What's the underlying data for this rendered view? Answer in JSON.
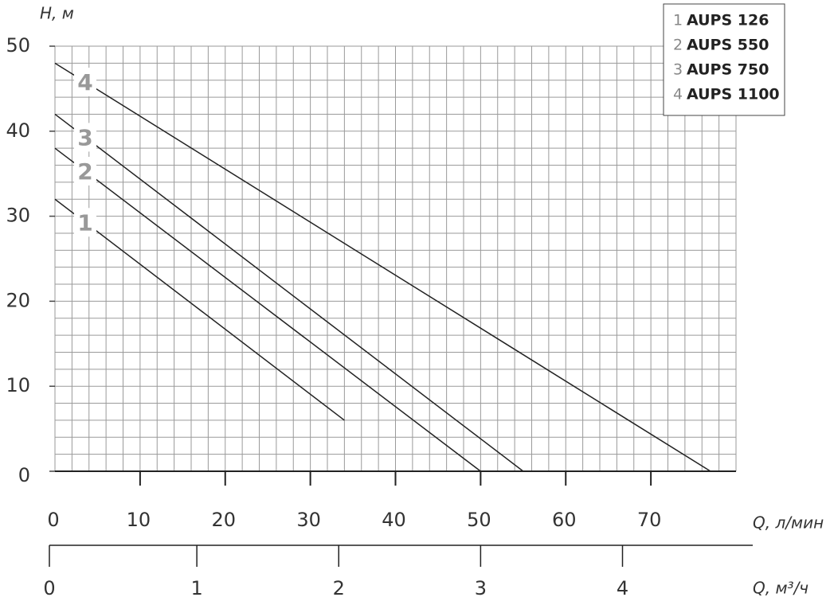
{
  "chart_data": {
    "type": "line",
    "x_label": "Q, л/мин",
    "y_label": "H, м",
    "x2_label": "Q, м³/ч",
    "xlim": [
      0,
      80
    ],
    "xticks": [
      0,
      10,
      20,
      30,
      40,
      50,
      60,
      70
    ],
    "ylim": [
      0,
      50
    ],
    "yticks": [
      0,
      10,
      20,
      30,
      40,
      50
    ],
    "x2lim": [
      0,
      4.8
    ],
    "x2ticks": [
      0,
      1,
      2,
      3,
      4
    ],
    "grid": true,
    "legend": "top-right",
    "series": [
      {
        "number": "1",
        "name": "AUPS 126",
        "color": "#222222",
        "x": [
          0,
          34
        ],
        "values": [
          32,
          6
        ]
      },
      {
        "number": "2",
        "name": "AUPS 550",
        "color": "#222222",
        "x": [
          0,
          50
        ],
        "values": [
          38,
          0
        ]
      },
      {
        "number": "3",
        "name": "AUPS 750",
        "color": "#222222",
        "x": [
          0,
          55
        ],
        "values": [
          42,
          0
        ]
      },
      {
        "number": "4",
        "name": "AUPS 1100",
        "color": "#222222",
        "x": [
          0,
          77
        ],
        "values": [
          48,
          0
        ]
      }
    ]
  }
}
